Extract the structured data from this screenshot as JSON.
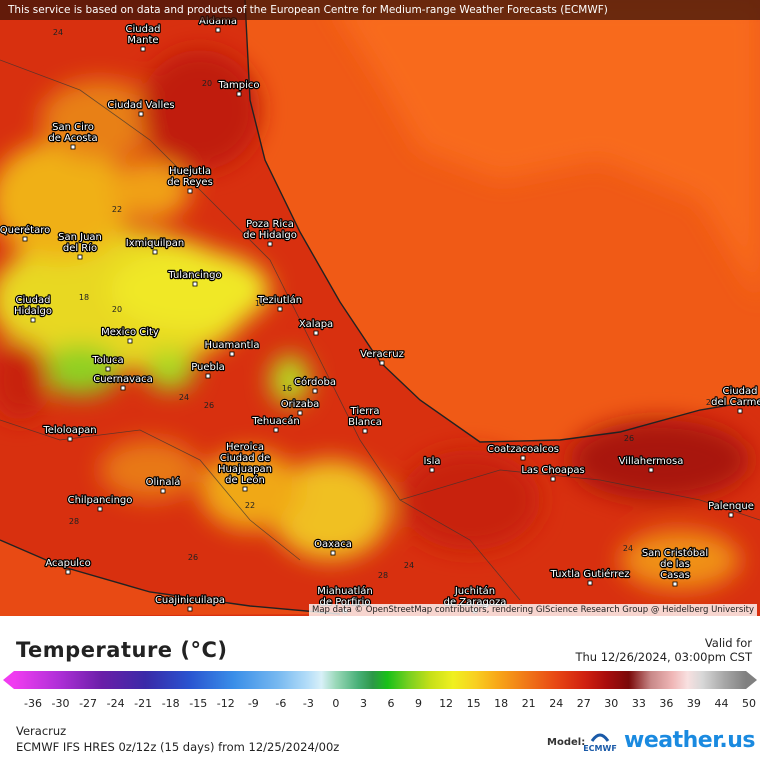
{
  "header": {
    "notice": "This service is based on data and products of the European Centre for Medium-range Weather Forecasts (ECMWF)"
  },
  "map": {
    "cities": [
      [
        "Aldama"
      ],
      [
        "Ciudad",
        "Mante"
      ],
      [
        "Tampico"
      ],
      [
        "Ciudad Valles"
      ],
      [
        "San Ciro",
        "de Acosta"
      ],
      [
        "Huejutla",
        "de Reyes"
      ],
      [
        "Poza Rica",
        "de Hidalgo"
      ],
      [
        "Querétaro"
      ],
      [
        "San Juan",
        "del Río"
      ],
      [
        "Ixmiquilpan"
      ],
      [
        "Tulancingo"
      ],
      [
        "Ciudad",
        "Hidalgo"
      ],
      [
        "Teziutlán"
      ],
      [
        "Xalapa"
      ],
      [
        "Mexico City"
      ],
      [
        "Huamantla"
      ],
      [
        "Veracruz"
      ],
      [
        "Toluca"
      ],
      [
        "Puebla"
      ],
      [
        "Cuernavaca"
      ],
      [
        "Córdoba"
      ],
      [
        "Orizaba"
      ],
      [
        "Tierra",
        "Blanca"
      ],
      [
        "Tehuacán"
      ],
      [
        "Teloloapan"
      ],
      [
        "Heroica",
        "Ciudad de",
        "Huajuapan",
        "de León"
      ],
      [
        "Coatzacoalcos"
      ],
      [
        "Isla"
      ],
      [
        "Las Choapas"
      ],
      [
        "Villahermosa"
      ],
      [
        "Ciudad",
        "del Carmen"
      ],
      [
        "Olinalá"
      ],
      [
        "Chilpancingo"
      ],
      [
        "Palenque"
      ],
      [
        "Oaxaca"
      ],
      [
        "San Cristóbal",
        "de las",
        "Casas"
      ],
      [
        "Acapulco"
      ],
      [
        "Tuxtla Gutiérrez"
      ],
      [
        "Miahuatlán",
        "de Porfirio"
      ],
      [
        "Juchitán",
        "de Zaragoza"
      ],
      [
        "Cuajinicuilapa"
      ]
    ],
    "contour_labels": [
      24,
      20,
      22,
      18,
      20,
      16,
      16,
      24,
      26,
      22,
      28,
      26,
      28,
      24,
      24,
      26,
      26
    ],
    "attribution": "Map data © OpenStreetMap contributors, rendering GIScience Research Group @ Heidelberg University"
  },
  "legend": {
    "title": "Temperature (°C)",
    "ticks": [
      -36,
      -30,
      -27,
      -24,
      -21,
      -18,
      -15,
      -12,
      -9,
      -6,
      -3,
      0,
      3,
      6,
      9,
      12,
      15,
      18,
      21,
      24,
      27,
      30,
      33,
      36,
      39,
      44,
      50
    ]
  },
  "valid": {
    "label": "Valid for",
    "time": "Thu 12/26/2024, 03:00pm CST"
  },
  "footer": {
    "region": "Veracruz",
    "model_run": "ECMWF IFS HRES 0z/12z (15 days) from 12/25/2024/00z",
    "model_label": "Model:",
    "model_name": "ECMWF",
    "brand": "weather.us"
  }
}
